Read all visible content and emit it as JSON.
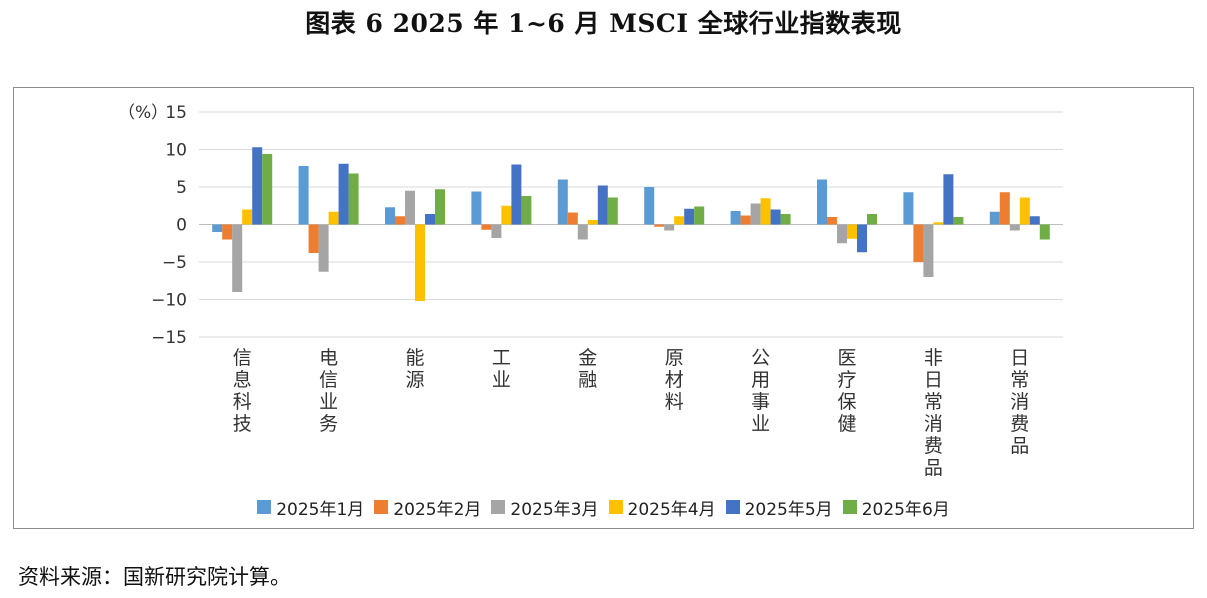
{
  "title": "图表 6  2025 年 1~6 月 MSCI 全球行业指数表现",
  "source": "资料来源：国新研究院计算。",
  "chart_data": {
    "type": "bar",
    "ylabel": "（%）",
    "ylim": [
      -15,
      15
    ],
    "yticks": [
      15,
      10,
      5,
      0,
      -5,
      -10,
      -15
    ],
    "ytick_labels": [
      "15",
      "10",
      "5",
      "0",
      "−5",
      "−10",
      "−15"
    ],
    "grid": true,
    "legend_position": "bottom",
    "categories": [
      "信息科技",
      "电信业务",
      "能源",
      "工业",
      "金融",
      "原材料",
      "公用事业",
      "医疗保健",
      "非日常消费品",
      "日常消费品"
    ],
    "series": [
      {
        "name": "2025年1月",
        "color": "#5B9BD5",
        "values": [
          -1.0,
          7.8,
          2.3,
          4.4,
          6.0,
          5.0,
          1.8,
          6.0,
          4.3,
          1.7
        ]
      },
      {
        "name": "2025年2月",
        "color": "#ED7D31",
        "values": [
          -2.0,
          -3.8,
          1.1,
          -0.7,
          1.6,
          -0.3,
          1.2,
          1.0,
          -5.0,
          4.3
        ]
      },
      {
        "name": "2025年3月",
        "color": "#A5A5A5",
        "values": [
          -9.0,
          -6.3,
          4.5,
          -1.8,
          -2.0,
          -0.8,
          2.8,
          -2.5,
          -7.0,
          -0.8
        ]
      },
      {
        "name": "2025年4月",
        "color": "#FFC000",
        "values": [
          2.0,
          1.7,
          -10.2,
          2.5,
          0.6,
          1.1,
          3.5,
          -1.9,
          0.3,
          3.6
        ]
      },
      {
        "name": "2025年5月",
        "color": "#4472C4",
        "values": [
          10.3,
          8.1,
          1.4,
          8.0,
          5.2,
          2.1,
          2.0,
          -3.7,
          6.7,
          1.1
        ]
      },
      {
        "name": "2025年6月",
        "color": "#70AD47",
        "values": [
          9.4,
          6.8,
          4.7,
          3.8,
          3.6,
          2.4,
          1.4,
          1.4,
          1.0,
          -2.0
        ]
      }
    ]
  }
}
